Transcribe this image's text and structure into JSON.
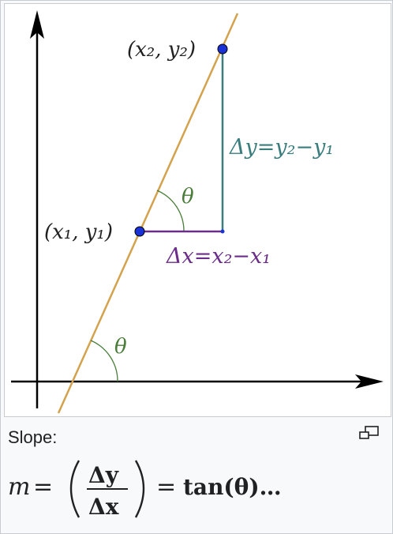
{
  "figure": {
    "point1_label": "(x₁, y₁)",
    "point2_label": "(x₂, y₂)",
    "delta_y_label": "Δy=y₂−y₁",
    "delta_x_label": "Δx=x₂−x₁",
    "theta_upper": "θ",
    "theta_lower": "θ",
    "colors": {
      "line": "#d4a24c",
      "point": "#1a31d6",
      "delta_x": "#6b2c8a",
      "delta_y": "#3a7d7d",
      "angle": "#4a7d3a",
      "axis": "#000000"
    }
  },
  "caption": {
    "label": "Slope:",
    "enlarge_icon": "enlarge-icon",
    "formula": {
      "lhs": "m",
      "equals": "=",
      "numerator": "Δy",
      "denominator": "Δx",
      "rhs": "tan(θ)…"
    }
  }
}
